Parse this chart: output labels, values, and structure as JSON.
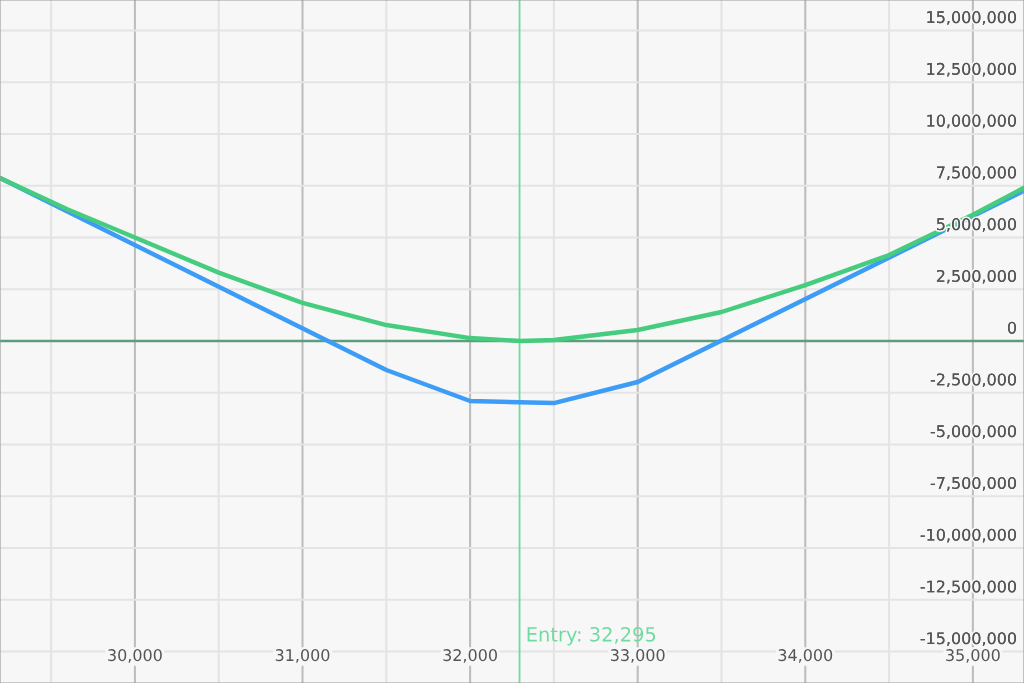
{
  "chart_data": {
    "type": "line",
    "xlim": [
      29195,
      35305
    ],
    "ylim": [
      -16520000,
      16470000
    ],
    "xticks": [
      {
        "value": 30000,
        "label": "30,000"
      },
      {
        "value": 31000,
        "label": "31,000"
      },
      {
        "value": 32000,
        "label": "32,000"
      },
      {
        "value": 33000,
        "label": "33,000"
      },
      {
        "value": 34000,
        "label": "34,000"
      },
      {
        "value": 35000,
        "label": "35,000"
      }
    ],
    "yticks": [
      {
        "value": 15000000,
        "label": "15,000,000"
      },
      {
        "value": 12500000,
        "label": "12,500,000"
      },
      {
        "value": 10000000,
        "label": "10,000,000"
      },
      {
        "value": 7500000,
        "label": "7,500,000"
      },
      {
        "value": 5000000,
        "label": "5,000,000"
      },
      {
        "value": 2500000,
        "label": "2,500,000"
      },
      {
        "value": 0,
        "label": "0"
      },
      {
        "value": -2500000,
        "label": "-2,500,000"
      },
      {
        "value": -5000000,
        "label": "-5,000,000"
      },
      {
        "value": -7500000,
        "label": "-7,500,000"
      },
      {
        "value": -10000000,
        "label": "-10,000,000"
      },
      {
        "value": -12500000,
        "label": "-12,500,000"
      },
      {
        "value": -15000000,
        "label": "-15,000,000"
      }
    ],
    "grid": true,
    "marker": "none",
    "line_style": "solid",
    "series": [
      {
        "color": "#3d9cf5",
        "x": [
          29195,
          31500,
          32000,
          32500,
          33000,
          35305
        ],
        "values": [
          7870000,
          -1400000,
          -2900000,
          -3000000,
          -1980000,
          7250000
        ]
      },
      {
        "color": "#46cc7e",
        "x": [
          29195,
          29600,
          30000,
          30500,
          31000,
          31500,
          32000,
          32300,
          32500,
          33000,
          33500,
          34000,
          34500,
          35000,
          35305
        ],
        "values": [
          7870000,
          6350000,
          5000000,
          3300000,
          1840000,
          770000,
          140000,
          0,
          50000,
          530000,
          1400000,
          2700000,
          4150000,
          6100000,
          7400000
        ]
      }
    ],
    "ref_lines": [
      {
        "axis": "x",
        "value": 32295,
        "label": "Entry: 32,295",
        "color": "#6fdc9f"
      },
      {
        "axis": "y",
        "value": 0,
        "label": null,
        "color": "#5a9e7e"
      }
    ]
  }
}
